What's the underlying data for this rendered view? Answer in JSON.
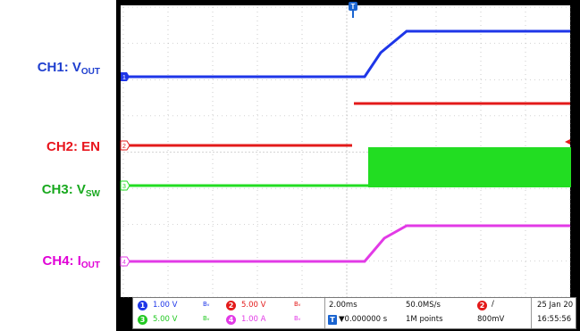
{
  "labels": {
    "ch1": {
      "main": "CH1: V",
      "sub": "OUT",
      "color": "#1f3fcf"
    },
    "ch2": {
      "main": "CH2: EN",
      "sub": "",
      "color": "#e8141c"
    },
    "ch3": {
      "main": "CH3: V",
      "sub": "SW",
      "color": "#19a91f"
    },
    "ch4": {
      "main": "CH4: I",
      "sub": "OUT",
      "color": "#e000d6"
    }
  },
  "colors": {
    "ch1": "#1e36e8",
    "ch2": "#e31a1a",
    "ch3": "#22dd22",
    "ch4": "#e23ae6",
    "grid": "#a9a9a9",
    "background": "#ffffff",
    "trigger": "#1a64d0"
  },
  "markers": {
    "ch1": "1",
    "ch2": "2",
    "ch3": "3",
    "ch4": "4",
    "trigger": "T"
  },
  "status_bar": {
    "ch1_scale": "1.00 V",
    "ch2_scale": "5.00 V",
    "ch3_scale": "5.00 V",
    "ch4_scale": "1.00 A",
    "bw_symbol": "Bᵥ",
    "timebase": "2.00ms",
    "sample_rate": "50.0MS/s",
    "trigger_delay": "▼0.000000 s",
    "record_length": "1M points",
    "trigger_source": "2",
    "trigger_slope": "/",
    "trigger_level": "800mV",
    "date": "25 Jan 20",
    "time": "16:55:56"
  }
}
